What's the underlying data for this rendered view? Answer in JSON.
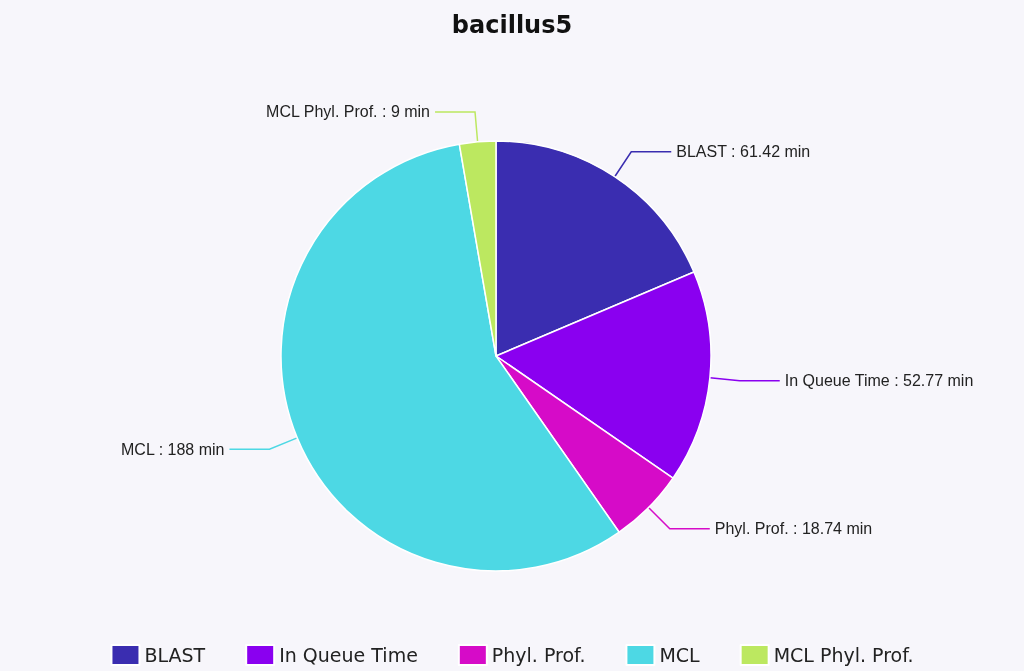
{
  "chart_data": {
    "type": "pie",
    "title": "bacillus5",
    "categories": [
      "BLAST",
      "In Queue Time",
      "Phyl. Prof.",
      "MCL",
      "MCL Phyl. Prof."
    ],
    "values": [
      61.42,
      52.77,
      18.74,
      188,
      9
    ],
    "value_labels": [
      ": 61.42 min",
      ": 52.77 min",
      ": 18.74 min",
      ": 188 min",
      ": 9 min"
    ],
    "colors": [
      "#3a2db0",
      "#8a00f0",
      "#d60bc8",
      "#4dd8e4",
      "#bce860"
    ],
    "legend": "bottom"
  }
}
